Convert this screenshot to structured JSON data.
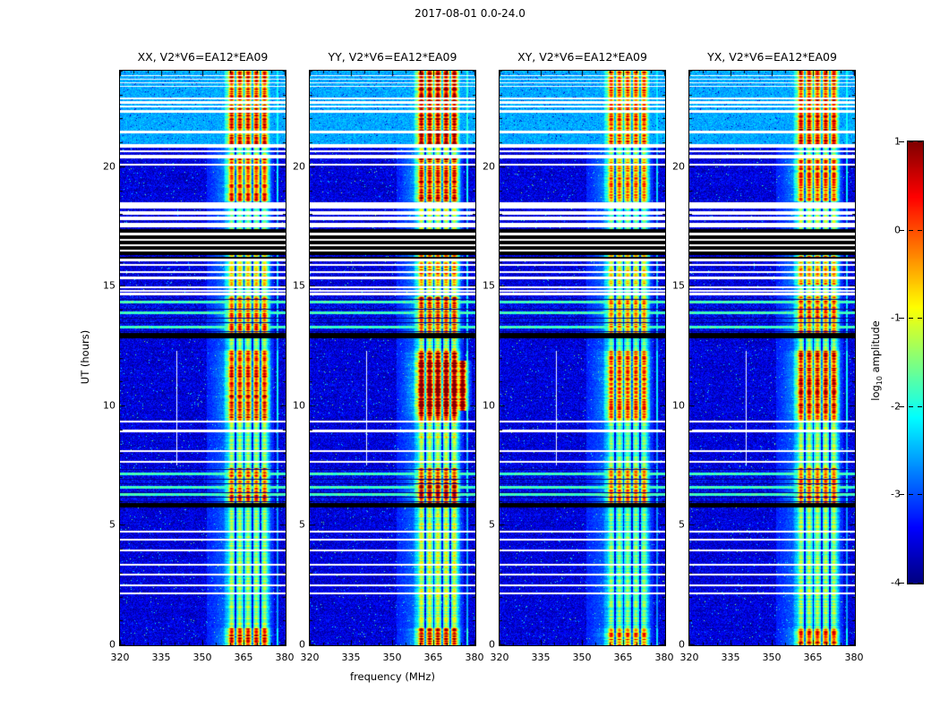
{
  "figure": {
    "suptitle": "2017-08-01 0.0-24.0",
    "xlabel": "frequency (MHz)",
    "ylabel": "UT (hours)",
    "colorbar_prefix": "log",
    "colorbar_sub": "10",
    "colorbar_suffix": " amplitude"
  },
  "chart_data": {
    "type": "heatmap",
    "title": "2017-08-01 0.0-24.0",
    "panels": [
      "XX, V2*V6=EA12*EA09",
      "YY, V2*V6=EA12*EA09",
      "XY, V2*V6=EA12*EA09",
      "YX, V2*V6=EA12*EA09"
    ],
    "x": {
      "label": "frequency (MHz)",
      "min": 320,
      "max": 380,
      "ticks": [
        320,
        335,
        350,
        365,
        380
      ],
      "minor_ticks": [
        325,
        330,
        340,
        345,
        355,
        360,
        370,
        375
      ]
    },
    "y": {
      "label": "UT (hours)",
      "min": 0,
      "max": 24,
      "ticks": [
        0,
        5,
        10,
        15,
        20
      ]
    },
    "colorbar": {
      "label": "log10 amplitude",
      "min": -4,
      "max": 1,
      "ticks": [
        1,
        0,
        -1,
        -2,
        -3,
        -4
      ],
      "colormap": "jet"
    },
    "clim": [
      -4,
      1
    ],
    "panel_tweaks": [
      {
        "mult": 1.0
      },
      {
        "mult": 1.12,
        "blob": [
          9.8,
          11.9
        ],
        "blob_f1": 378
      },
      {
        "mult": 0.9
      },
      {
        "mult": 1.0
      }
    ],
    "features": {
      "background_level": -3.55,
      "band": {
        "f0": 357.5,
        "core0": 359.5,
        "core1": 373.5,
        "f1": 375.0,
        "stripe_period": 3.0,
        "base_boost": 0.55,
        "dark_lines": [
          362,
          365,
          368,
          371
        ]
      },
      "boost_intervals": [
        [
          0,
          0.7,
          1.0
        ],
        [
          5.95,
          7.4,
          0.95
        ],
        [
          9.3,
          12.3,
          1.05
        ],
        [
          13.05,
          14.6,
          0.92
        ],
        [
          15.05,
          16.3,
          0.8
        ],
        [
          18.55,
          20.35,
          0.95
        ],
        [
          20.95,
          24,
          1.05
        ]
      ],
      "cyan_regions": [
        [
          20.95,
          24
        ]
      ],
      "white_gaps": [
        [
          17.45,
          18.5
        ],
        [
          20.35,
          20.95
        ],
        [
          22.25,
          22.9
        ],
        [
          23.35,
          23.85
        ]
      ],
      "gap_data_lines": [
        17.7,
        17.95,
        18.2,
        20.55,
        20.75,
        22.42,
        22.6,
        22.78,
        23.45,
        23.6,
        23.75
      ],
      "white_lines": [
        2.15,
        2.5,
        2.95,
        3.35,
        3.95,
        4.4,
        4.75,
        7.65,
        8.1,
        8.95,
        9.35,
        14.68,
        14.82,
        14.96,
        15.35,
        15.6,
        15.9,
        16.1,
        20.1,
        21.45
      ],
      "black_bands": [
        [
          16.32,
          17.38
        ],
        [
          5.75,
          5.92
        ],
        [
          12.82,
          12.98
        ]
      ],
      "black_band_white_lines": [
        16.5,
        16.72,
        16.95,
        17.18
      ],
      "black_lines": [
        16.2,
        13.02
      ],
      "messy_regions": [
        [
          5.95,
          7.4
        ],
        [
          13.05,
          14.6
        ]
      ],
      "bright_rows": [
        6.28,
        6.6,
        7.15,
        13.3,
        13.9,
        14.35
      ],
      "white_vline": {
        "f": 340.5,
        "t0": 7.5,
        "t1": 12.3
      },
      "rfi_outside": [
        {
          "f": 377.3,
          "boost": 0.35
        }
      ]
    }
  }
}
